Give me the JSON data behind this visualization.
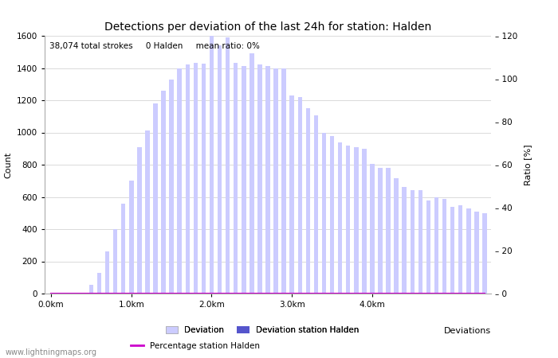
{
  "title": "Detections per deviation of the last 24h for station: Halden",
  "xlabel": "Deviations",
  "ylabel_left": "Count",
  "ylabel_right": "Ratio [%]",
  "annotation": "38,074 total strokes     0 Halden     mean ratio: 0%",
  "watermark": "www.lightningmaps.org",
  "bar_color": "#ccccff",
  "station_bar_color": "#5555cc",
  "line_color": "#cc00cc",
  "ylim_left": [
    0,
    1600
  ],
  "ylim_right": [
    0,
    120
  ],
  "xtick_labels": [
    "0.0km",
    "1.0km",
    "2.0km",
    "3.0km",
    "4.0km"
  ],
  "xtick_positions": [
    0,
    10,
    20,
    30,
    40
  ],
  "yticks_left": [
    0,
    200,
    400,
    600,
    800,
    1000,
    1200,
    1400,
    1600
  ],
  "yticks_right": [
    0,
    20,
    40,
    60,
    80,
    100,
    120
  ],
  "deviation_counts": [
    0,
    0,
    0,
    0,
    5,
    55,
    130,
    260,
    400,
    560,
    700,
    910,
    1010,
    1180,
    1260,
    1330,
    1400,
    1420,
    1430,
    1425,
    1600,
    1540,
    1590,
    1430,
    1410,
    1490,
    1420,
    1410,
    1400,
    1400,
    1230,
    1220,
    1150,
    1105,
    1000,
    980,
    940,
    920,
    910,
    900,
    805,
    780,
    780,
    715,
    660,
    640,
    640,
    580,
    600,
    590,
    540,
    550,
    530,
    510,
    500
  ],
  "station_counts": [
    0,
    0,
    0,
    0,
    0,
    0,
    0,
    0,
    0,
    0,
    0,
    0,
    0,
    0,
    0,
    0,
    0,
    0,
    0,
    0,
    0,
    0,
    0,
    0,
    0,
    0,
    0,
    0,
    0,
    0,
    0,
    0,
    0,
    0,
    0,
    0,
    0,
    0,
    0,
    0,
    0,
    0,
    0,
    0,
    0,
    0,
    0,
    0,
    0,
    0,
    0,
    0,
    0,
    0,
    0
  ],
  "ratio_values": [
    0,
    0,
    0,
    0,
    0,
    0,
    0,
    0,
    0,
    0,
    0,
    0,
    0,
    0,
    0,
    0,
    0,
    0,
    0,
    0,
    0,
    0,
    0,
    0,
    0,
    0,
    0,
    0,
    0,
    0,
    0,
    0,
    0,
    0,
    0,
    0,
    0,
    0,
    0,
    0,
    0,
    0,
    0,
    0,
    0,
    0,
    0,
    0,
    0,
    0,
    0,
    0,
    0,
    0,
    0
  ],
  "legend_labels": [
    "Deviation",
    "Deviation station Halden",
    "Percentage station Halden"
  ],
  "title_fontsize": 10,
  "axis_fontsize": 8,
  "tick_fontsize": 7.5,
  "annotation_fontsize": 7.5
}
